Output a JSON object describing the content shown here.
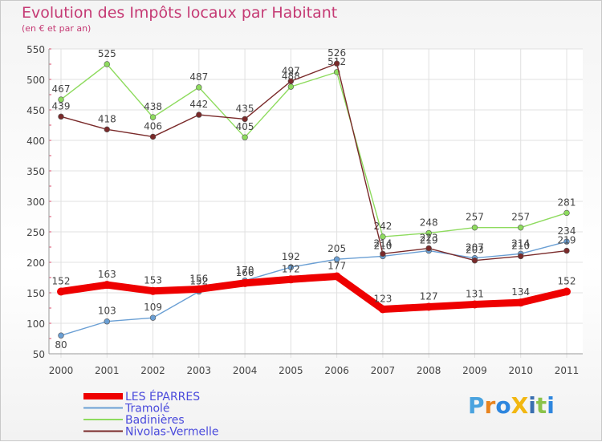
{
  "title": "Evolution des Impôts locaux par Habitant",
  "subtitle": "(en € et par an)",
  "logo": {
    "text": "ProXiti",
    "letter_colors": [
      "#4aa3df",
      "#e8841f",
      "#2e86de",
      "#f2b711",
      "#3a6fb0",
      "#8bc34a",
      "#2e86de"
    ]
  },
  "chart_data": {
    "type": "line",
    "categories": [
      "2000",
      "2001",
      "2002",
      "2003",
      "2004",
      "2005",
      "2006",
      "2007",
      "2008",
      "2009",
      "2010",
      "2011"
    ],
    "ylim": [
      50,
      550
    ],
    "yticks": [
      50,
      100,
      150,
      200,
      250,
      300,
      350,
      400,
      450,
      500,
      550
    ],
    "grid": true,
    "legend_position": "bottom-left",
    "series": [
      {
        "name": "LES ÉPARRES",
        "color": "#ee0000",
        "values": [
          152,
          163,
          153,
          156,
          166,
          172,
          177,
          123,
          127,
          131,
          134,
          152
        ]
      },
      {
        "name": "Tramolé",
        "color": "#6a9fd4",
        "values": [
          80,
          103,
          109,
          152,
          170,
          192,
          205,
          210,
          219,
          207,
          214,
          234
        ]
      },
      {
        "name": "Badinières",
        "color": "#8edb5e",
        "values": [
          467,
          525,
          438,
          487,
          405,
          488,
          512,
          242,
          248,
          257,
          257,
          281
        ]
      },
      {
        "name": "Nivolas-Vermelle",
        "color": "#7a2a2a",
        "values": [
          439,
          418,
          406,
          442,
          435,
          497,
          526,
          214,
          223,
          203,
          210,
          219
        ]
      }
    ]
  }
}
